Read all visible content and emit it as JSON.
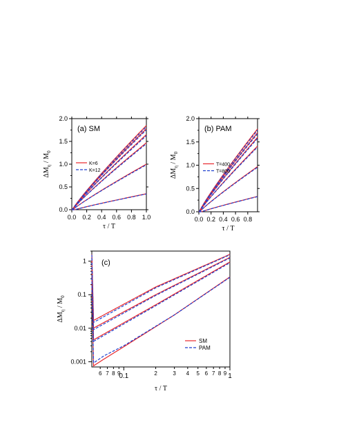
{
  "colors": {
    "sm": "#e8262a",
    "pam": "#1d3fcf",
    "axis": "#000000"
  },
  "chart_data": [
    {
      "id": "a",
      "type": "line",
      "panel_label": "(a) SM",
      "xlabel": "τ / T",
      "ylabel": "ΔMη / M0",
      "ylabel_main": "ΔM",
      "ylabel_sub": "η",
      "ylabel_mid": " / M",
      "ylabel_sub2": "0",
      "xlim": [
        0,
        1.0
      ],
      "ylim": [
        0,
        2.0
      ],
      "xticks": [
        "0.0",
        "0.2",
        "0.4",
        "0.6",
        "0.8",
        "1.0"
      ],
      "yticks": [
        "0.0",
        "0.5",
        "1.0",
        "1.5",
        "2.0"
      ],
      "legend": [
        "K=6",
        "K=12"
      ],
      "legend_position": "middle-left",
      "curves_end": [
        1.85,
        1.78,
        1.65,
        1.47,
        1.0,
        0.35
      ]
    },
    {
      "id": "b",
      "type": "line",
      "panel_label": "(b) PAM",
      "xlabel": "τ / T",
      "ylabel": "ΔMη / M0",
      "ylabel_main": "ΔM",
      "ylabel_sub": "η",
      "ylabel_mid": " / M",
      "ylabel_sub2": "0",
      "xlim": [
        0,
        0.96
      ],
      "ylim": [
        0,
        2.0
      ],
      "xticks": [
        "0.0",
        "0.2",
        "0.4",
        "0.6",
        "0.8"
      ],
      "yticks": [
        "0.0",
        "0.5",
        "1.0",
        "1.5",
        "2.0"
      ],
      "legend": [
        "T=400",
        "T=800"
      ],
      "legend_position": "middle-left",
      "curves_end": [
        1.78,
        1.7,
        1.6,
        1.41,
        0.97,
        0.33
      ]
    },
    {
      "id": "c",
      "type": "line",
      "panel_label": "(c)",
      "xlabel": "τ / T",
      "ylabel": "ΔMη / M0",
      "ylabel_main": "ΔM",
      "ylabel_sub": "η",
      "ylabel_mid": " / M",
      "ylabel_sub2": "0",
      "xscale": "log",
      "yscale": "log",
      "xlim": [
        0.05,
        1.0
      ],
      "ylim": [
        0.0007,
        2.0
      ],
      "xtick_labels": [
        {
          "v": 0.06,
          "t": "6"
        },
        {
          "v": 0.07,
          "t": "7"
        },
        {
          "v": 0.08,
          "t": "8"
        },
        {
          "v": 0.09,
          "t": "9"
        },
        {
          "v": 0.1,
          "t": "0.1"
        },
        {
          "v": 0.2,
          "t": "2"
        },
        {
          "v": 0.3,
          "t": "3"
        },
        {
          "v": 0.4,
          "t": "4"
        },
        {
          "v": 0.5,
          "t": "5"
        },
        {
          "v": 0.6,
          "t": "6"
        },
        {
          "v": 0.7,
          "t": "7"
        },
        {
          "v": 0.8,
          "t": "8"
        },
        {
          "v": 0.9,
          "t": "9"
        },
        {
          "v": 1.0,
          "t": "1"
        }
      ],
      "yticks": [
        {
          "v": 0.001,
          "t": "0.001"
        },
        {
          "v": 0.01,
          "t": "0.01"
        },
        {
          "v": 0.1,
          "t": "0.1"
        },
        {
          "v": 1,
          "t": "1"
        }
      ],
      "legend": [
        "SM",
        "PAM"
      ],
      "legend_position": "bottom-right",
      "series": [
        {
          "sm": [
            [
              0.05,
              0.016
            ],
            [
              0.2,
              0.17
            ],
            [
              1.0,
              1.6
            ]
          ],
          "pam": [
            [
              0.05,
              0.014
            ],
            [
              0.2,
              0.16
            ],
            [
              1.0,
              1.55
            ]
          ]
        },
        {
          "sm": [
            [
              0.05,
              0.0095
            ],
            [
              0.2,
              0.1
            ],
            [
              1.0,
              1.3
            ]
          ],
          "pam": [
            [
              0.05,
              0.0085
            ],
            [
              0.2,
              0.095
            ],
            [
              1.0,
              1.25
            ]
          ]
        },
        {
          "sm": [
            [
              0.05,
              0.0042
            ],
            [
              0.2,
              0.05
            ],
            [
              1.0,
              0.95
            ]
          ],
          "pam": [
            [
              0.05,
              0.0038
            ],
            [
              0.2,
              0.047
            ],
            [
              1.0,
              0.9
            ]
          ]
        },
        {
          "sm": [
            [
              0.05,
              0.0007
            ],
            [
              0.065,
              0.0012
            ],
            [
              0.1,
              0.0028
            ],
            [
              0.3,
              0.025
            ],
            [
              1.0,
              0.34
            ]
          ],
          "pam": [
            [
              0.05,
              0.00085
            ],
            [
              0.065,
              0.0015
            ],
            [
              0.1,
              0.003
            ],
            [
              0.3,
              0.025
            ],
            [
              1.0,
              0.33
            ]
          ]
        }
      ]
    }
  ]
}
